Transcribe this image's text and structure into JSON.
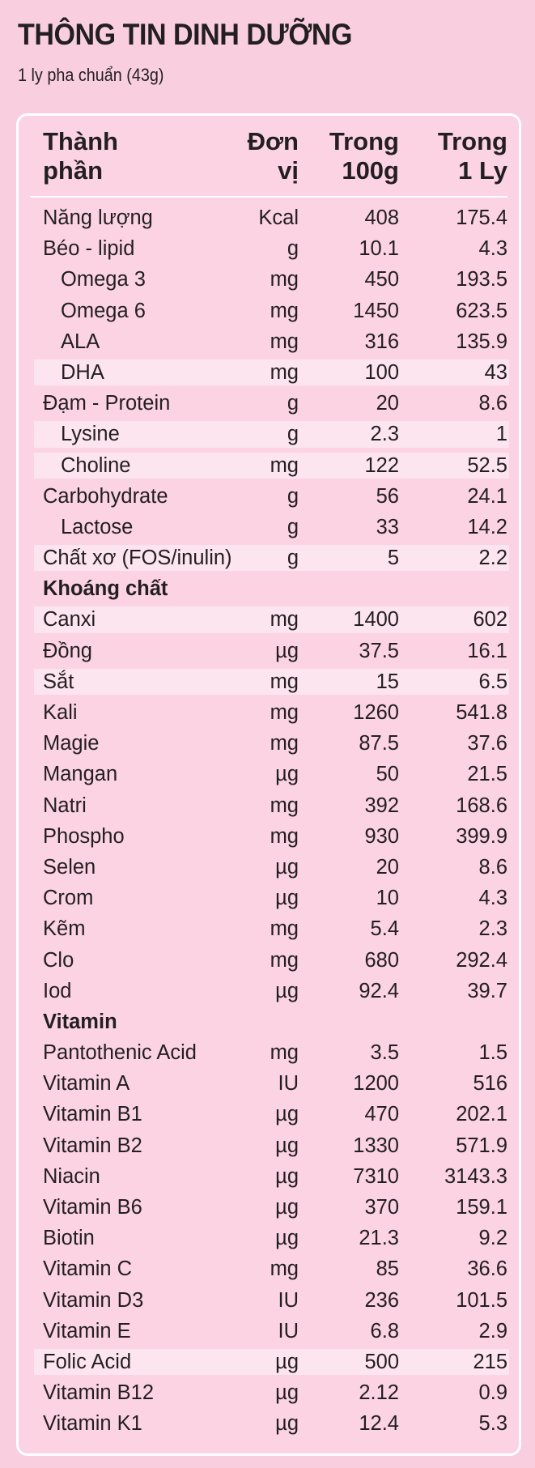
{
  "title": "THÔNG TIN DINH DƯỠNG",
  "subtitle": "1 ly pha chuẩn (43g)",
  "headers": {
    "name": [
      "Thành",
      "phần"
    ],
    "unit": [
      "Đơn",
      "vị"
    ],
    "per100": [
      "Trong",
      "100g"
    ],
    "per1": [
      "Trong",
      "1 Ly"
    ]
  },
  "rows": [
    {
      "name": "Năng lượng",
      "unit": "Kcal",
      "v100": "408",
      "v1": "175.4"
    },
    {
      "name": "Béo - lipid",
      "unit": "g",
      "v100": "10.1",
      "v1": "4.3"
    },
    {
      "name": "Omega 3",
      "unit": "mg",
      "v100": "450",
      "v1": "193.5",
      "indent": true
    },
    {
      "name": "Omega 6",
      "unit": "mg",
      "v100": "1450",
      "v1": "623.5",
      "indent": true
    },
    {
      "name": "ALA",
      "unit": "mg",
      "v100": "316",
      "v1": "135.9",
      "indent": true
    },
    {
      "name": "DHA",
      "unit": "mg",
      "v100": "100",
      "v1": "43",
      "indent": true,
      "highlight": true
    },
    {
      "name": "Đạm - Protein",
      "unit": "g",
      "v100": "20",
      "v1": "8.6"
    },
    {
      "name": "Lysine",
      "unit": "g",
      "v100": "2.3",
      "v1": "1",
      "indent": true,
      "highlight": true
    },
    {
      "name": "Choline",
      "unit": "mg",
      "v100": "122",
      "v1": "52.5",
      "indent": true,
      "highlight": true
    },
    {
      "name": "Carbohydrate",
      "unit": "g",
      "v100": "56",
      "v1": "24.1"
    },
    {
      "name": "Lactose",
      "unit": "g",
      "v100": "33",
      "v1": "14.2",
      "indent": true
    },
    {
      "name": "Chất xơ (FOS/inulin)",
      "unit": "g",
      "v100": "5",
      "v1": "2.2",
      "highlight": true
    },
    {
      "name": "Khoáng chất",
      "section": true
    },
    {
      "name": "Canxi",
      "unit": "mg",
      "v100": "1400",
      "v1": "602",
      "highlight": true
    },
    {
      "name": "Đồng",
      "unit": "µg",
      "v100": "37.5",
      "v1": "16.1"
    },
    {
      "name": "Sắt",
      "unit": "mg",
      "v100": "15",
      "v1": "6.5",
      "highlight": true
    },
    {
      "name": "Kali",
      "unit": "mg",
      "v100": "1260",
      "v1": "541.8"
    },
    {
      "name": "Magie",
      "unit": "mg",
      "v100": "87.5",
      "v1": "37.6"
    },
    {
      "name": "Mangan",
      "unit": "µg",
      "v100": "50",
      "v1": "21.5"
    },
    {
      "name": "Natri",
      "unit": "mg",
      "v100": "392",
      "v1": "168.6"
    },
    {
      "name": "Phospho",
      "unit": "mg",
      "v100": "930",
      "v1": "399.9"
    },
    {
      "name": "Selen",
      "unit": "µg",
      "v100": "20",
      "v1": "8.6"
    },
    {
      "name": "Crom",
      "unit": "µg",
      "v100": "10",
      "v1": "4.3"
    },
    {
      "name": "Kẽm",
      "unit": "mg",
      "v100": "5.4",
      "v1": "2.3"
    },
    {
      "name": "Clo",
      "unit": "mg",
      "v100": "680",
      "v1": "292.4"
    },
    {
      "name": "Iod",
      "unit": "µg",
      "v100": "92.4",
      "v1": "39.7"
    },
    {
      "name": "Vitamin",
      "section": true
    },
    {
      "name": "Pantothenic Acid",
      "unit": "mg",
      "v100": "3.5",
      "v1": "1.5"
    },
    {
      "name": "Vitamin A",
      "unit": "IU",
      "v100": "1200",
      "v1": "516"
    },
    {
      "name": "Vitamin B1",
      "unit": "µg",
      "v100": "470",
      "v1": "202.1"
    },
    {
      "name": "Vitamin B2",
      "unit": "µg",
      "v100": "1330",
      "v1": "571.9"
    },
    {
      "name": "Niacin",
      "unit": "µg",
      "v100": "7310",
      "v1": "3143.3"
    },
    {
      "name": "Vitamin B6",
      "unit": "µg",
      "v100": "370",
      "v1": "159.1"
    },
    {
      "name": "Biotin",
      "unit": "µg",
      "v100": "21.3",
      "v1": "9.2"
    },
    {
      "name": "Vitamin C",
      "unit": "mg",
      "v100": "85",
      "v1": "36.6"
    },
    {
      "name": "Vitamin D3",
      "unit": "IU",
      "v100": "236",
      "v1": "101.5"
    },
    {
      "name": "Vitamin E",
      "unit": "IU",
      "v100": "6.8",
      "v1": "2.9"
    },
    {
      "name": "Folic Acid",
      "unit": "µg",
      "v100": "500",
      "v1": "215",
      "highlight": true
    },
    {
      "name": "Vitamin B12",
      "unit": "µg",
      "v100": "2.12",
      "v1": "0.9"
    },
    {
      "name": "Vitamin K1",
      "unit": "µg",
      "v100": "12.4",
      "v1": "5.3"
    }
  ]
}
